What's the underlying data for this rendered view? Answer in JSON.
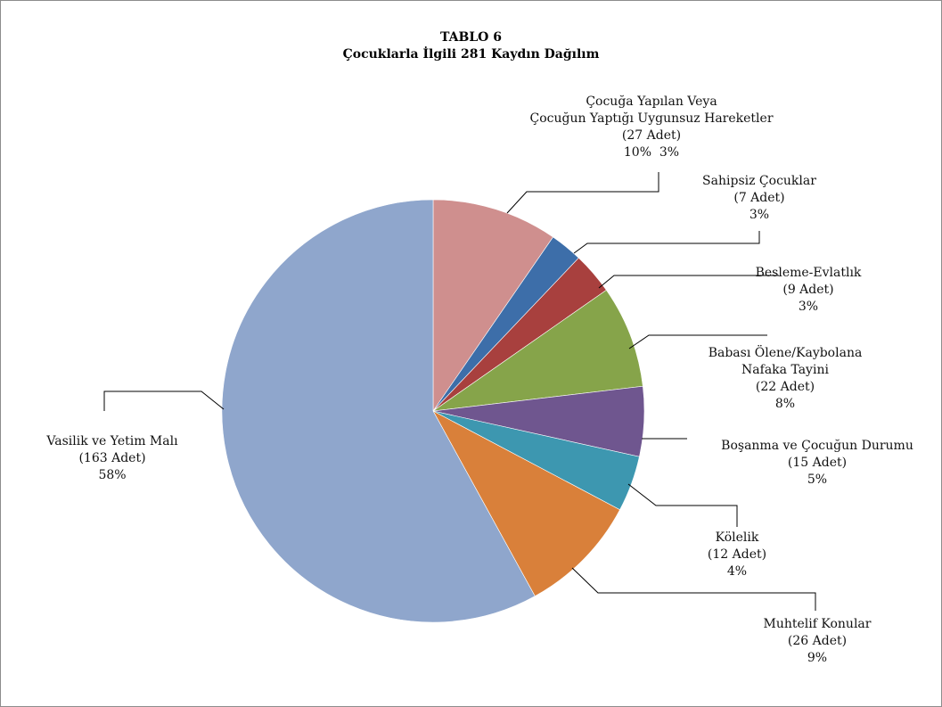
{
  "chart_data": {
    "type": "pie",
    "title": "TABLO 6",
    "subtitle": "Çocuklarla İlgili 281 Kaydın Dağılım",
    "slices": [
      {
        "name": "Çocuğa Yapılan Veya Çocuğun Yaptığı Uygunsuz Hareketler",
        "lines": [
          "Çocuğa Yapılan Veya",
          "Çocuğun Yaptığı Uygunsuz Hareketler"
        ],
        "count_label": "(27 Adet)",
        "pct_label": "10%  3%",
        "value": 27,
        "color": "#cf8f8e"
      },
      {
        "name": "Sahipsiz Çocuklar",
        "lines": [
          "Sahipsiz Çocuklar"
        ],
        "count_label": "(7 Adet)",
        "pct_label": "3%",
        "value": 7,
        "color": "#3d6ea9"
      },
      {
        "name": "Besleme-Evlatlık",
        "lines": [
          "Besleme-Evlatlık"
        ],
        "count_label": "(9 Adet)",
        "pct_label": "3%",
        "value": 9,
        "color": "#a8403e"
      },
      {
        "name": "Babası Ölene/Kaybolana Nafaka Tayini",
        "lines": [
          "Babası Ölene/Kaybolana",
          "Nafaka Tayini"
        ],
        "count_label": "(22 Adet)",
        "pct_label": "8%",
        "value": 22,
        "color": "#86a44a"
      },
      {
        "name": "Boşanma ve Çocuğun Durumu",
        "lines": [
          "Boşanma ve Çocuğun Durumu"
        ],
        "count_label": "(15 Adet)",
        "pct_label": "5%",
        "value": 15,
        "color": "#6f568f"
      },
      {
        "name": "Kölelik",
        "lines": [
          "Kölelik"
        ],
        "count_label": "(12 Adet)",
        "pct_label": "4%",
        "value": 12,
        "color": "#3d97b0"
      },
      {
        "name": "Muhtelif Konular",
        "lines": [
          "Muhtelif Konular"
        ],
        "count_label": "(26 Adet)",
        "pct_label": "9%",
        "value": 26,
        "color": "#d9803a"
      },
      {
        "name": "Vasilik ve Yetim Malı",
        "lines": [
          "Vasilik ve Yetim Malı"
        ],
        "count_label": "(163 Adet)",
        "pct_label": "58%",
        "value": 163,
        "color": "#8fa6cc"
      }
    ],
    "legend": "none",
    "grid": false
  }
}
